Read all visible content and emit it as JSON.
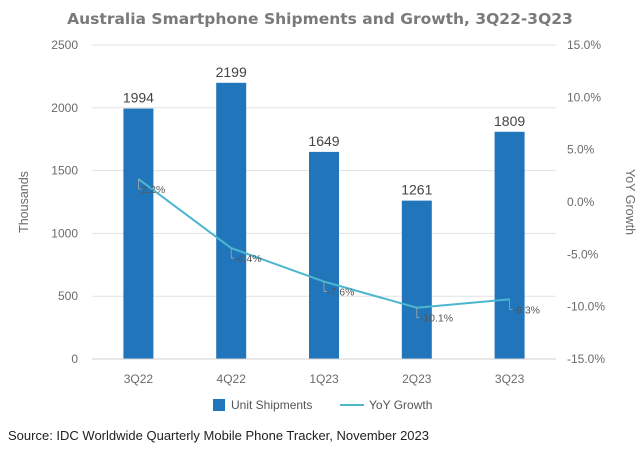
{
  "chart_data": {
    "type": "bar+line",
    "title": "Australia Smartphone Shipments and Growth, 3Q22-3Q23",
    "categories": [
      "3Q22",
      "4Q22",
      "1Q23",
      "2Q23",
      "3Q23"
    ],
    "series": [
      {
        "name": "Unit Shipments",
        "type": "bar",
        "axis": "left",
        "values": [
          1994,
          2199,
          1649,
          1261,
          1809
        ],
        "labels": [
          "1994",
          "2199",
          "1649",
          "1261",
          "1809"
        ]
      },
      {
        "name": "YoY Growth",
        "type": "line",
        "axis": "right",
        "values": [
          2.2,
          -4.4,
          -7.6,
          -10.1,
          -9.3
        ],
        "labels": [
          "2.2%",
          "-4.4%",
          "-7.6%",
          "-10.1%",
          "-9.3%"
        ]
      }
    ],
    "ylabel": "Thousands",
    "y2label": "YoY Growth",
    "ylim": [
      0,
      2500
    ],
    "y2lim": [
      -15,
      15
    ],
    "yticks": [
      "0",
      "500",
      "1000",
      "1500",
      "2000",
      "2500"
    ],
    "y2ticks": [
      "-15.0%",
      "-10.0%",
      "-5.0%",
      "0.0%",
      "5.0%",
      "10.0%",
      "15.0%"
    ],
    "grid": true,
    "legend": "bottom-center"
  },
  "colors": {
    "bar": "#2176bb",
    "line": "#4cb6cf",
    "title": "#7a7a7a",
    "axis_text": "#6b6b6b",
    "grid": "#e3e3e3"
  },
  "source": "Source: IDC Worldwide Quarterly Mobile Phone Tracker, November 2023"
}
